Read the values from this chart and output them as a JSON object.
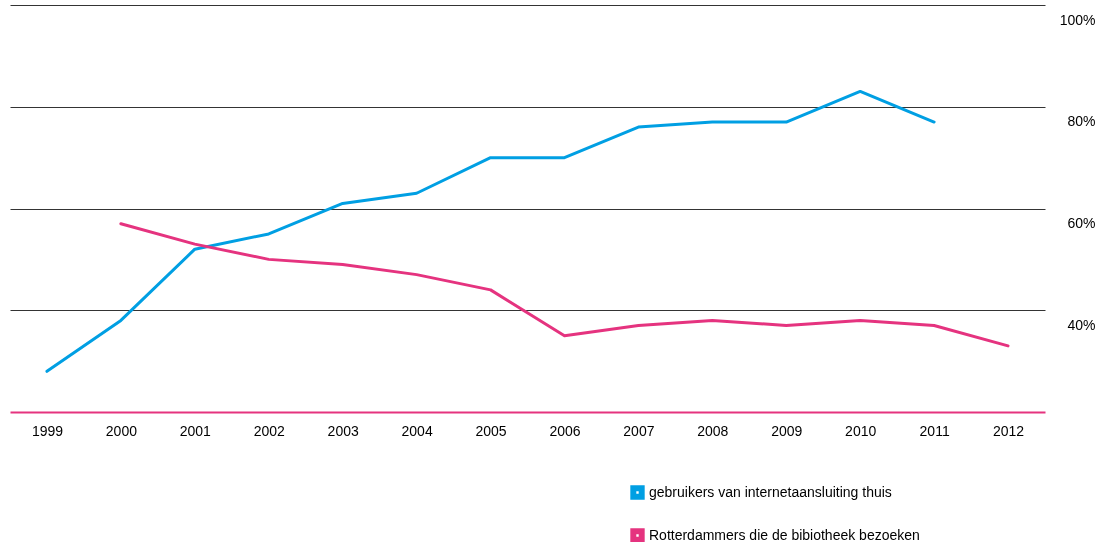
{
  "chart_data": {
    "type": "line",
    "categories": [
      "1999",
      "2000",
      "2001",
      "2002",
      "2003",
      "2004",
      "2005",
      "2006",
      "2007",
      "2008",
      "2009",
      "2010",
      "2011",
      "2012"
    ],
    "series": [
      {
        "name": "gebruikers van internetaansluiting thuis",
        "color": "#009fe3",
        "values": [
          28,
          38,
          52,
          55,
          61,
          63,
          70,
          70,
          76,
          77,
          77,
          83,
          77,
          null
        ]
      },
      {
        "name": "Rotterdammers die de bibiotheek bezoeken",
        "color": "#e5337f",
        "values": [
          null,
          57,
          53,
          50,
          49,
          47,
          44,
          35,
          37,
          38,
          37,
          38,
          37,
          33
        ]
      }
    ],
    "ylim": [
      20,
      100
    ],
    "yticks": [
      {
        "value": 40,
        "label": "40%"
      },
      {
        "value": 60,
        "label": "60%"
      },
      {
        "value": 80,
        "label": "80%"
      },
      {
        "value": 100,
        "label": "100%"
      }
    ],
    "grid": "y",
    "legend": "bottom",
    "marker": "none",
    "line_style": "solid"
  }
}
